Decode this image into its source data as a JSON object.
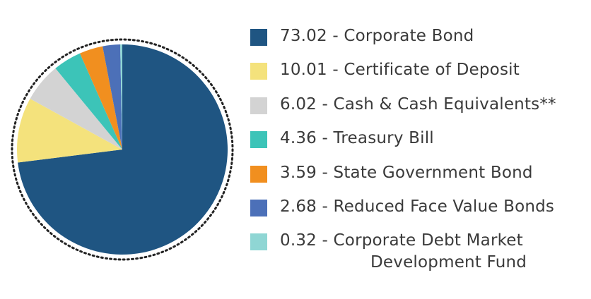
{
  "chart_data": {
    "type": "pie",
    "slices": [
      {
        "value": 73.02,
        "label": "Corporate Bond",
        "color": "#1f5582"
      },
      {
        "value": 10.01,
        "label": "Certificate of Deposit",
        "color": "#f4e27c"
      },
      {
        "value": 6.02,
        "label": "Cash & Cash Equivalents**",
        "color": "#d3d3d3"
      },
      {
        "value": 4.36,
        "label": "Treasury Bill",
        "color": "#3cc4b8"
      },
      {
        "value": 3.59,
        "label": "State Government Bond",
        "color": "#f18f1f"
      },
      {
        "value": 2.68,
        "label": "Reduced Face Value Bonds",
        "color": "#4c70b8"
      },
      {
        "value": 0.32,
        "label": "Corporate Debt Market Development Fund",
        "color": "#8fd6d4"
      }
    ],
    "legend": [
      {
        "text": "73.02 - Corporate Bond"
      },
      {
        "text": "10.01 - Certificate of Deposit"
      },
      {
        "text": "6.02 - Cash & Cash Equivalents**"
      },
      {
        "text": "4.36 - Treasury Bill"
      },
      {
        "text": "3.59 - State Government Bond"
      },
      {
        "text": "2.68 - Reduced Face Value Bonds"
      },
      {
        "text": "0.32 - Corporate Debt Market",
        "text2": "Development Fund"
      }
    ],
    "legend_position": "right",
    "border_style": "dotted circle"
  }
}
